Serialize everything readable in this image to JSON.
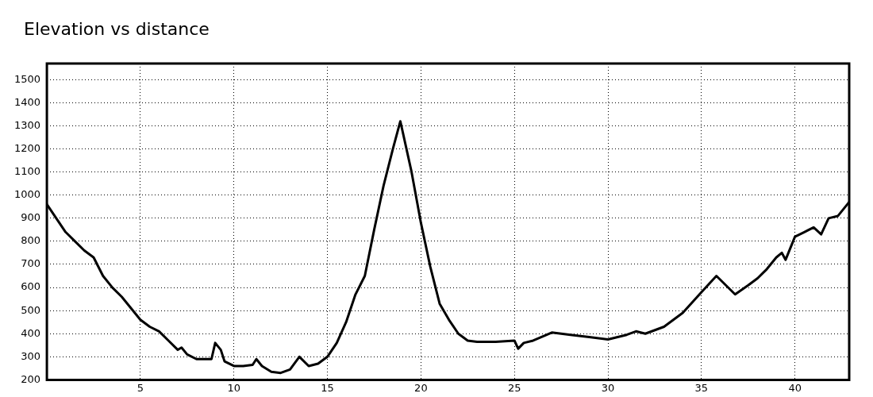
{
  "chart_data": {
    "type": "line",
    "title": "Elevation vs distance",
    "x": [
      0,
      0.5,
      1,
      1.5,
      2,
      2.5,
      3,
      3.5,
      4,
      4.5,
      5,
      5.5,
      6,
      6.5,
      7,
      7.2,
      7.5,
      8,
      8.5,
      8.8,
      9,
      9.3,
      9.5,
      10,
      10.5,
      11,
      11.2,
      11.5,
      12,
      12.5,
      13,
      13.5,
      14,
      14.5,
      15,
      15.5,
      16,
      16.5,
      17,
      17.5,
      18,
      18.5,
      18.9,
      19.5,
      20,
      20.5,
      21,
      21.5,
      22,
      22.5,
      23,
      24,
      25,
      25.2,
      25.5,
      26,
      27,
      28,
      29,
      30,
      31,
      31.5,
      32,
      33,
      34,
      35,
      35.8,
      36.8,
      37.5,
      38,
      38.5,
      39,
      39.3,
      39.5,
      40,
      40.5,
      41,
      41.4,
      41.8,
      42.3,
      42.9
    ],
    "series": [
      {
        "color": "#000000",
        "values": [
          960,
          900,
          840,
          800,
          760,
          730,
          650,
          600,
          560,
          510,
          460,
          430,
          410,
          370,
          330,
          340,
          310,
          290,
          290,
          290,
          360,
          330,
          280,
          260,
          260,
          265,
          290,
          260,
          235,
          230,
          245,
          300,
          260,
          270,
          300,
          360,
          450,
          570,
          650,
          850,
          1040,
          1200,
          1320,
          1100,
          880,
          690,
          530,
          460,
          400,
          370,
          365,
          365,
          370,
          335,
          360,
          370,
          405,
          395,
          385,
          375,
          395,
          410,
          400,
          430,
          490,
          580,
          650,
          570,
          610,
          640,
          680,
          730,
          750,
          720,
          820,
          840,
          860,
          830,
          900,
          910,
          970
        ]
      }
    ],
    "xlim": [
      0,
      42.9
    ],
    "xticks": [
      5,
      10,
      15,
      20,
      25,
      30,
      35,
      40
    ],
    "ylim": [
      200,
      1570
    ],
    "yticks": [
      200,
      300,
      400,
      500,
      600,
      700,
      800,
      900,
      1000,
      1100,
      1200,
      1300,
      1400,
      1500
    ],
    "grid": true,
    "legend": false,
    "marker": "none",
    "line_style": "solid"
  }
}
